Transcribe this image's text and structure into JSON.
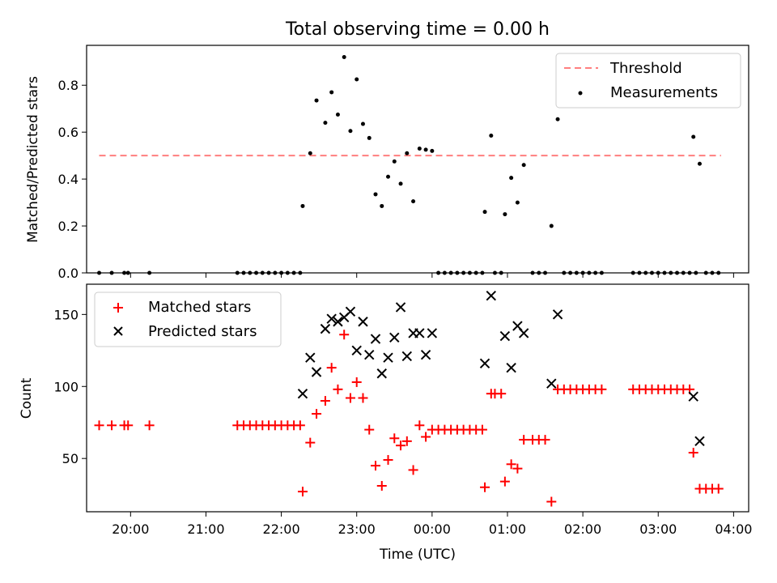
{
  "chart_data": [
    {
      "type": "scatter",
      "title": "Total observing time = 0.00 h",
      "xlabel": "",
      "ylabel": "Matched/Predicted stars",
      "xlim": [
        "19:25",
        "04:12"
      ],
      "ylim": [
        0,
        0.97
      ],
      "yticks": [
        "0.0",
        "0.2",
        "0.4",
        "0.6",
        "0.8"
      ],
      "legend_position": "upper right",
      "threshold": {
        "name": "Threshold",
        "color": "#ff7f7f",
        "value": 0.5,
        "x_range": [
          "19:35",
          "03:50"
        ]
      },
      "series": [
        {
          "name": "Measurements",
          "color": "#000000",
          "points": [
            [
              "19:35",
              0
            ],
            [
              "19:45",
              0
            ],
            [
              "19:55",
              0
            ],
            [
              "19:58",
              0
            ],
            [
              "20:15",
              0
            ],
            [
              "21:25",
              0
            ],
            [
              "21:30",
              0
            ],
            [
              "21:35",
              0
            ],
            [
              "21:40",
              0
            ],
            [
              "21:45",
              0
            ],
            [
              "21:50",
              0
            ],
            [
              "21:55",
              0
            ],
            [
              "22:00",
              0
            ],
            [
              "22:05",
              0
            ],
            [
              "22:10",
              0
            ],
            [
              "22:15",
              0
            ],
            [
              "22:17",
              0.285
            ],
            [
              "22:23",
              0.51
            ],
            [
              "22:28",
              0.735
            ],
            [
              "22:35",
              0.64
            ],
            [
              "22:40",
              0.77
            ],
            [
              "22:45",
              0.675
            ],
            [
              "22:50",
              0.92
            ],
            [
              "22:55",
              0.605
            ],
            [
              "23:00",
              0.825
            ],
            [
              "23:05",
              0.635
            ],
            [
              "23:10",
              0.575
            ],
            [
              "23:15",
              0.335
            ],
            [
              "23:20",
              0.285
            ],
            [
              "23:25",
              0.41
            ],
            [
              "23:30",
              0.475
            ],
            [
              "23:35",
              0.38
            ],
            [
              "23:40",
              0.51
            ],
            [
              "23:45",
              0.305
            ],
            [
              "23:50",
              0.53
            ],
            [
              "23:55",
              0.525
            ],
            [
              "00:00",
              0.52
            ],
            [
              "00:05",
              0
            ],
            [
              "00:10",
              0
            ],
            [
              "00:15",
              0
            ],
            [
              "00:20",
              0
            ],
            [
              "00:25",
              0
            ],
            [
              "00:30",
              0
            ],
            [
              "00:35",
              0
            ],
            [
              "00:40",
              0
            ],
            [
              "00:42",
              0.26
            ],
            [
              "00:47",
              0.585
            ],
            [
              "00:50",
              0
            ],
            [
              "00:55",
              0
            ],
            [
              "00:58",
              0.25
            ],
            [
              "01:03",
              0.405
            ],
            [
              "01:08",
              0.3
            ],
            [
              "01:13",
              0.46
            ],
            [
              "01:20",
              0
            ],
            [
              "01:25",
              0
            ],
            [
              "01:30",
              0
            ],
            [
              "01:35",
              0.2
            ],
            [
              "01:40",
              0.655
            ],
            [
              "01:45",
              0
            ],
            [
              "01:50",
              0
            ],
            [
              "01:55",
              0
            ],
            [
              "02:00",
              0
            ],
            [
              "02:05",
              0
            ],
            [
              "02:10",
              0
            ],
            [
              "02:15",
              0
            ],
            [
              "02:40",
              0
            ],
            [
              "02:45",
              0
            ],
            [
              "02:50",
              0
            ],
            [
              "02:55",
              0
            ],
            [
              "03:00",
              0
            ],
            [
              "03:05",
              0
            ],
            [
              "03:10",
              0
            ],
            [
              "03:15",
              0
            ],
            [
              "03:20",
              0
            ],
            [
              "03:25",
              0
            ],
            [
              "03:30",
              0
            ],
            [
              "03:28",
              0.58
            ],
            [
              "03:33",
              0.465
            ],
            [
              "03:38",
              0
            ],
            [
              "03:43",
              0
            ],
            [
              "03:48",
              0
            ]
          ]
        }
      ]
    },
    {
      "type": "scatter",
      "title": "",
      "xlabel": "Time (UTC)",
      "ylabel": "Count",
      "xlim": [
        "19:25",
        "04:12"
      ],
      "ylim": [
        13,
        171
      ],
      "yticks": [
        "50",
        "100",
        "150"
      ],
      "xticks": [
        "20:00",
        "21:00",
        "22:00",
        "23:00",
        "00:00",
        "01:00",
        "02:00",
        "03:00",
        "04:00"
      ],
      "legend_position": "upper left",
      "series": [
        {
          "name": "Matched stars",
          "color": "#ff0000",
          "marker": "plus",
          "points": [
            [
              "19:35",
              73
            ],
            [
              "19:45",
              73
            ],
            [
              "19:55",
              73
            ],
            [
              "19:58",
              73
            ],
            [
              "20:15",
              73
            ],
            [
              "21:25",
              73
            ],
            [
              "21:30",
              73
            ],
            [
              "21:35",
              73
            ],
            [
              "21:40",
              73
            ],
            [
              "21:45",
              73
            ],
            [
              "21:50",
              73
            ],
            [
              "21:55",
              73
            ],
            [
              "22:00",
              73
            ],
            [
              "22:05",
              73
            ],
            [
              "22:10",
              73
            ],
            [
              "22:15",
              73
            ],
            [
              "22:17",
              27
            ],
            [
              "22:23",
              61
            ],
            [
              "22:28",
              81
            ],
            [
              "22:35",
              90
            ],
            [
              "22:40",
              113
            ],
            [
              "22:45",
              98
            ],
            [
              "22:50",
              136
            ],
            [
              "22:55",
              92
            ],
            [
              "23:00",
              103
            ],
            [
              "23:05",
              92
            ],
            [
              "23:10",
              70
            ],
            [
              "23:15",
              45
            ],
            [
              "23:20",
              31
            ],
            [
              "23:25",
              49
            ],
            [
              "23:30",
              64
            ],
            [
              "23:35",
              59
            ],
            [
              "23:40",
              62
            ],
            [
              "23:45",
              42
            ],
            [
              "23:50",
              73
            ],
            [
              "23:55",
              65
            ],
            [
              "00:00",
              70
            ],
            [
              "00:05",
              70
            ],
            [
              "00:10",
              70
            ],
            [
              "00:15",
              70
            ],
            [
              "00:20",
              70
            ],
            [
              "00:25",
              70
            ],
            [
              "00:30",
              70
            ],
            [
              "00:35",
              70
            ],
            [
              "00:40",
              70
            ],
            [
              "00:42",
              30
            ],
            [
              "00:47",
              95
            ],
            [
              "00:50",
              95
            ],
            [
              "00:55",
              95
            ],
            [
              "00:58",
              34
            ],
            [
              "01:03",
              46
            ],
            [
              "01:08",
              43
            ],
            [
              "01:13",
              63
            ],
            [
              "01:20",
              63
            ],
            [
              "01:25",
              63
            ],
            [
              "01:30",
              63
            ],
            [
              "01:35",
              20
            ],
            [
              "01:40",
              98
            ],
            [
              "01:45",
              98
            ],
            [
              "01:50",
              98
            ],
            [
              "01:55",
              98
            ],
            [
              "02:00",
              98
            ],
            [
              "02:05",
              98
            ],
            [
              "02:10",
              98
            ],
            [
              "02:15",
              98
            ],
            [
              "02:40",
              98
            ],
            [
              "02:45",
              98
            ],
            [
              "02:50",
              98
            ],
            [
              "02:55",
              98
            ],
            [
              "03:00",
              98
            ],
            [
              "03:05",
              98
            ],
            [
              "03:10",
              98
            ],
            [
              "03:15",
              98
            ],
            [
              "03:20",
              98
            ],
            [
              "03:25",
              98
            ],
            [
              "03:28",
              54
            ],
            [
              "03:33",
              29
            ],
            [
              "03:38",
              29
            ],
            [
              "03:43",
              29
            ],
            [
              "03:48",
              29
            ]
          ]
        },
        {
          "name": "Predicted stars",
          "color": "#000000",
          "marker": "x",
          "points": [
            [
              "22:17",
              95
            ],
            [
              "22:23",
              120
            ],
            [
              "22:28",
              110
            ],
            [
              "22:35",
              140
            ],
            [
              "22:40",
              147
            ],
            [
              "22:45",
              145
            ],
            [
              "22:50",
              148
            ],
            [
              "22:55",
              152
            ],
            [
              "23:00",
              125
            ],
            [
              "23:05",
              145
            ],
            [
              "23:10",
              122
            ],
            [
              "23:15",
              133
            ],
            [
              "23:20",
              109
            ],
            [
              "23:25",
              120
            ],
            [
              "23:30",
              134
            ],
            [
              "23:35",
              155
            ],
            [
              "23:40",
              121
            ],
            [
              "23:45",
              137
            ],
            [
              "23:50",
              137
            ],
            [
              "23:55",
              122
            ],
            [
              "00:00",
              137
            ],
            [
              "00:42",
              116
            ],
            [
              "00:47",
              163
            ],
            [
              "00:58",
              135
            ],
            [
              "01:03",
              113
            ],
            [
              "01:08",
              142
            ],
            [
              "01:13",
              137
            ],
            [
              "01:35",
              102
            ],
            [
              "01:40",
              150
            ],
            [
              "03:28",
              93
            ],
            [
              "03:33",
              62
            ]
          ]
        }
      ]
    }
  ]
}
